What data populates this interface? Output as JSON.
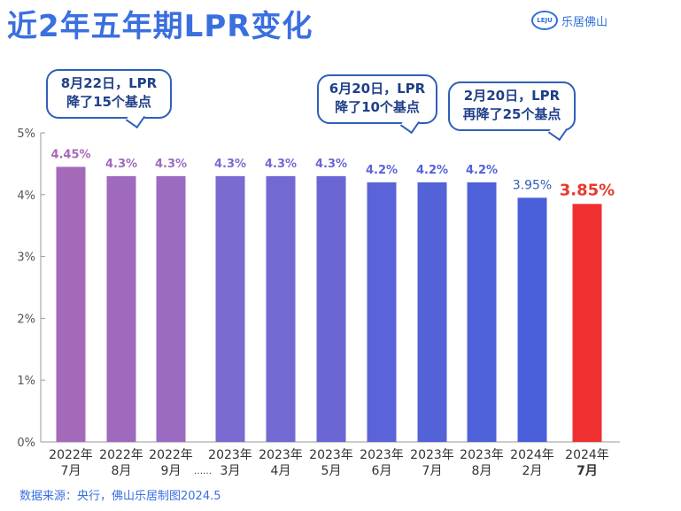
{
  "title": "近2年五年期LPR变化",
  "brand": {
    "logo_text": "LEJU",
    "name": "乐居佛山"
  },
  "source": "数据来源：央行，佛山乐居制图2024.5",
  "annotations": [
    {
      "line1": "8月22日，LPR",
      "line2": "降了15个基点"
    },
    {
      "line1": "6月20日，LPR",
      "line2": "降了10个基点"
    },
    {
      "line1": "2月20日，LPR",
      "line2": "再降了25个基点"
    }
  ],
  "chart_data": {
    "type": "bar",
    "title": "近2年五年期LPR变化",
    "ylim": [
      0,
      5
    ],
    "yticks": [
      "0%",
      "1%",
      "2%",
      "3%",
      "4%",
      "5%"
    ],
    "grid": false,
    "legend": "none",
    "categories": [
      {
        "year": "2022年",
        "month": "7月"
      },
      {
        "year": "2022年",
        "month": "8月"
      },
      {
        "year": "2022年",
        "month": "9月"
      },
      {
        "year": "2023年",
        "month": "3月"
      },
      {
        "year": "2023年",
        "month": "4月"
      },
      {
        "year": "2023年",
        "month": "5月"
      },
      {
        "year": "2023年",
        "month": "6月"
      },
      {
        "year": "2023年",
        "month": "7月"
      },
      {
        "year": "2023年",
        "month": "8月"
      },
      {
        "year": "2024年",
        "month": "2月"
      },
      {
        "year": "2024年",
        "month": "7月"
      }
    ],
    "gap_marker": "……",
    "values": [
      4.45,
      4.3,
      4.3,
      4.3,
      4.3,
      4.3,
      4.2,
      4.2,
      4.2,
      3.95,
      3.85
    ],
    "value_labels": [
      "4.45%",
      "4.3%",
      "4.3%",
      "4.3%",
      "4.3%",
      "4.3%",
      "4.2%",
      "4.2%",
      "4.2%",
      "3.95%",
      "3.85%"
    ],
    "colors": [
      "#a569b9",
      "#9f6abd",
      "#9a6bc0",
      "#7a6bd0",
      "#7269d2",
      "#6a67d4",
      "#5a64d8",
      "#5462d8",
      "#4f61d9",
      "#4a60da",
      "#f03030"
    ],
    "label_colors": [
      "#a569b9",
      "#9f6abd",
      "#9a6bc0",
      "#7a6bd0",
      "#7269d2",
      "#6a67d4",
      "#5a64d8",
      "#5462d8",
      "#4f61d9",
      "#2f5fb8",
      "#e83a2a"
    ],
    "highlight_index": 10
  }
}
